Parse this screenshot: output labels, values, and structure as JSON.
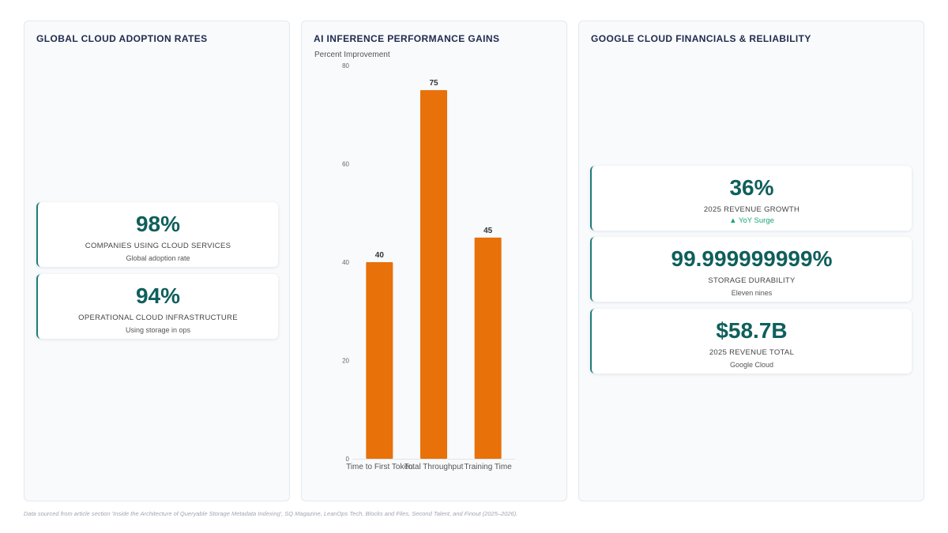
{
  "left_panel": {
    "title": "GLOBAL CLOUD ADOPTION RATES",
    "cards": [
      {
        "value": "98%",
        "label": "COMPANIES USING CLOUD SERVICES",
        "sub": "Global adoption rate"
      },
      {
        "value": "94%",
        "label": "OPERATIONAL CLOUD INFRASTRUCTURE",
        "sub": "Using storage in ops"
      }
    ]
  },
  "mid_panel": {
    "title": "AI INFERENCE PERFORMANCE GAINS"
  },
  "right_panel": {
    "title": "GOOGLE CLOUD FINANCIALS & RELIABILITY",
    "cards": [
      {
        "value": "36%",
        "label": "2025 REVENUE GROWTH",
        "trend": "▲ YoY Surge"
      },
      {
        "value": "99.999999999%",
        "label": "STORAGE DURABILITY",
        "sub": "Eleven nines"
      },
      {
        "value": "$58.7B",
        "label": "2025 REVENUE TOTAL",
        "sub": "Google Cloud"
      }
    ]
  },
  "chart_data": {
    "type": "bar",
    "title": "AI INFERENCE PERFORMANCE GAINS",
    "ylabel": "Percent Improvement",
    "xlabel": "",
    "categories": [
      "Time to First Token",
      "Total Throughput",
      "Training Time"
    ],
    "values": [
      40,
      75,
      45
    ],
    "data_labels": [
      "40",
      "75",
      "45"
    ],
    "ylim": [
      0,
      80
    ],
    "yticks": [
      0,
      20,
      40,
      60,
      80
    ],
    "ytick_labels": [
      "0",
      "20",
      "40",
      "60",
      "80"
    ],
    "grid": false,
    "legend": "none",
    "bar_color": "#e8710a"
  },
  "colors": {
    "accent_teal": "#0f5f5c",
    "card_border": "#1f7a78",
    "trend_green": "#1aa37a",
    "title_navy": "#1f2a4d"
  },
  "footer": {
    "note": "Data sourced from article section 'Inside the Architecture of Queryable Storage Metadata Indexing', SQ Magazine, LeanOps Tech, Blocks and Files, Second Talent, and Finout (2025–2026)."
  }
}
